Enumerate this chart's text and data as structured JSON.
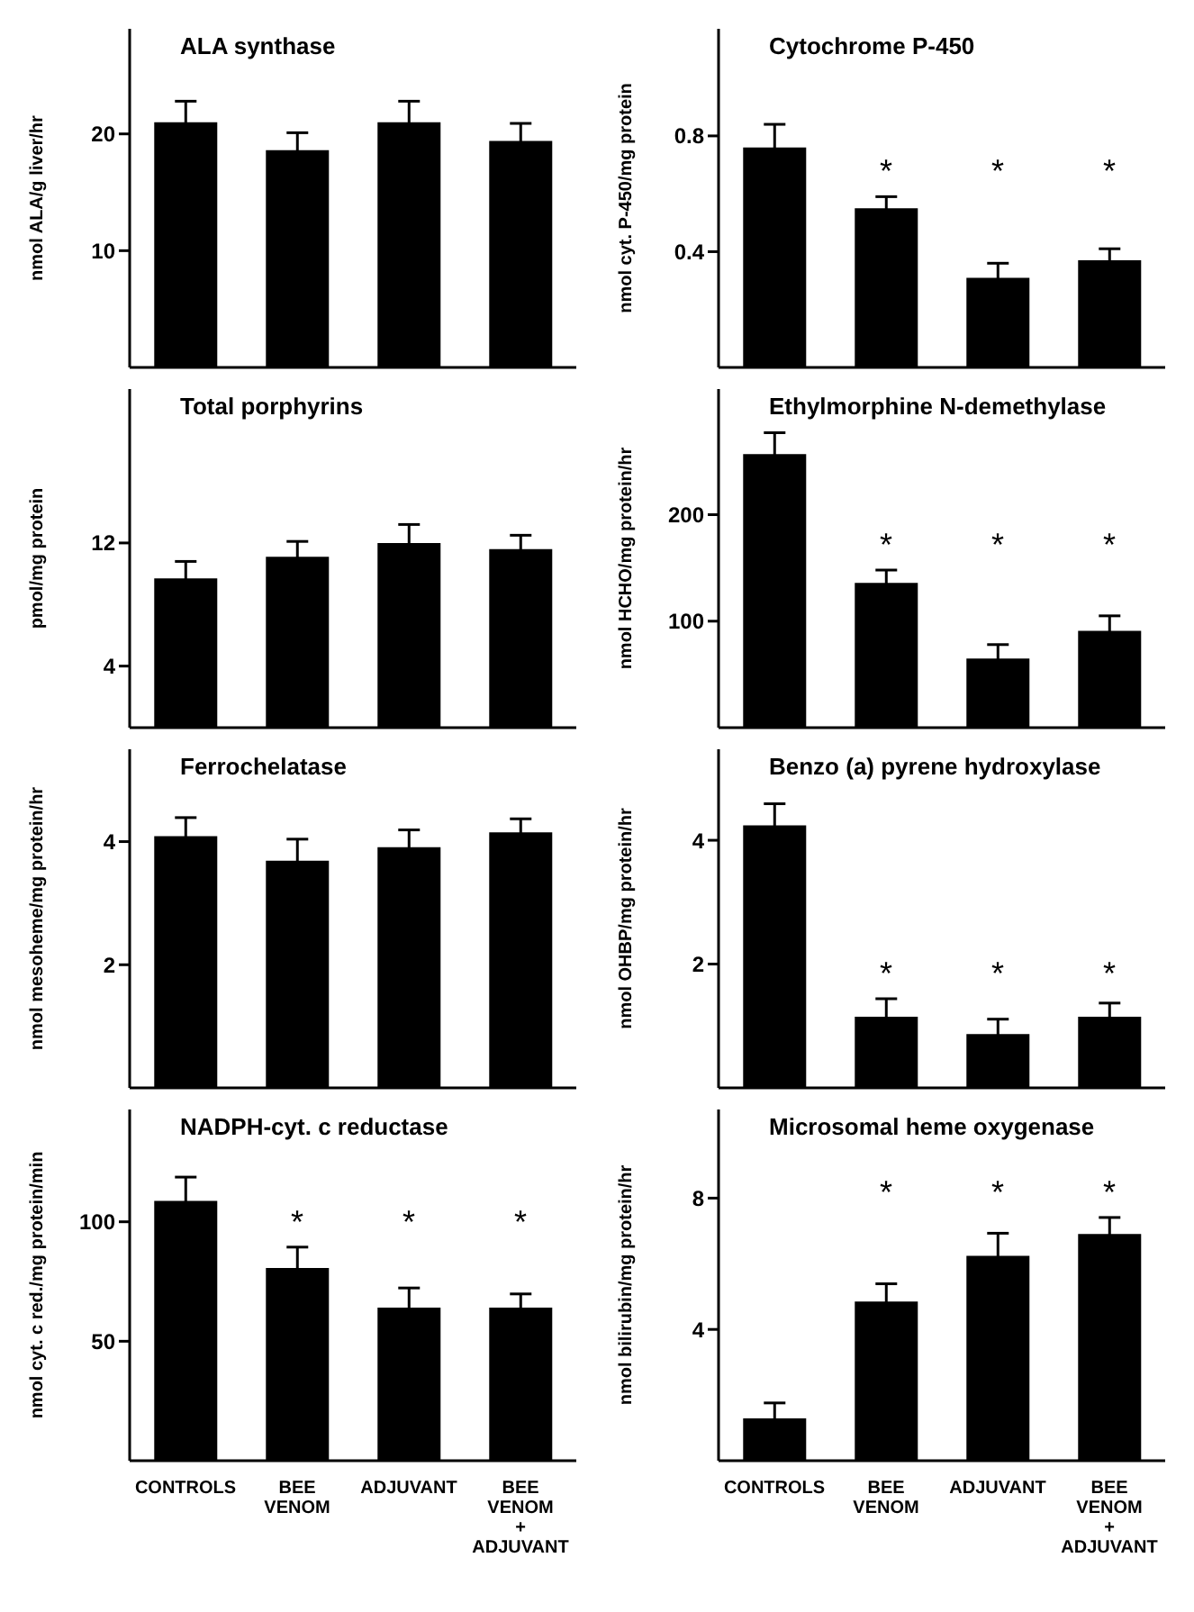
{
  "chart_data": [
    {
      "type": "bar",
      "title": "ALA synthase",
      "ylabel": "nmol ALA/g liver/hr",
      "categories": [
        null,
        null,
        null,
        null
      ],
      "values": [
        21.0,
        18.6,
        21.0,
        19.4
      ],
      "errors": [
        1.8,
        1.5,
        1.8,
        1.5
      ],
      "color": "#000000",
      "ylim": [
        0,
        29
      ],
      "yticks": [
        10,
        20
      ],
      "tick_labels": "y"
    },
    {
      "type": "bar",
      "title": "Cytochrome P-450",
      "ylabel": "nmol cyt. P-450/mg protein",
      "categories": [
        null,
        null,
        null,
        null
      ],
      "values": [
        0.76,
        0.55,
        0.31,
        0.37
      ],
      "errors": [
        0.08,
        0.04,
        0.05,
        0.04
      ],
      "color": "#000000",
      "ylim": [
        0,
        1.17
      ],
      "yticks": [
        0.4,
        0.8
      ],
      "tick_labels": "y",
      "annotations": [
        "*",
        "*",
        "*"
      ]
    },
    {
      "type": "bar",
      "title": "Total porphyrins",
      "ylabel": "pmol/mg protein",
      "categories": [
        null,
        null,
        null,
        null
      ],
      "values": [
        9.7,
        11.1,
        12.0,
        11.6
      ],
      "errors": [
        1.1,
        1.0,
        1.2,
        0.9
      ],
      "color": "#000000",
      "ylim": [
        0,
        22
      ],
      "yticks": [
        4,
        12
      ],
      "tick_labels": "y"
    },
    {
      "type": "bar",
      "title": "Ethylmorphine N-demethylase",
      "ylabel": "nmol HCHO/mg protein/hr",
      "categories": [
        null,
        null,
        null,
        null
      ],
      "values": [
        257,
        136,
        65,
        91
      ],
      "errors": [
        20,
        12,
        13,
        14
      ],
      "color": "#000000",
      "ylim": [
        0,
        318
      ],
      "yticks": [
        100,
        200
      ],
      "tick_labels": "y",
      "annotations": [
        "*",
        "*",
        "*"
      ]
    },
    {
      "type": "bar",
      "title": "Ferrochelatase",
      "ylabel": "nmol mesoheme/mg protein/hr",
      "categories": [
        null,
        null,
        null,
        null
      ],
      "values": [
        4.09,
        3.69,
        3.91,
        4.15
      ],
      "errors": [
        0.3,
        0.35,
        0.28,
        0.22
      ],
      "color": "#000000",
      "ylim": [
        0,
        5.5
      ],
      "yticks": [
        2,
        4
      ],
      "tick_labels": "y"
    },
    {
      "type": "bar",
      "title": "Benzo (a) pyrene hydroxylase",
      "ylabel": "nmol OHBP/mg protein/hr",
      "categories": [
        null,
        null,
        null,
        null
      ],
      "values": [
        4.24,
        1.15,
        0.87,
        1.15
      ],
      "errors": [
        0.35,
        0.29,
        0.24,
        0.22
      ],
      "color": "#000000",
      "ylim": [
        0,
        5.47
      ],
      "yticks": [
        2,
        4
      ],
      "tick_labels": "y",
      "annotations": [
        "*",
        "*",
        "*"
      ]
    },
    {
      "type": "bar",
      "title": "NADPH-cyt. c reductase",
      "ylabel": "nmol cyt. c red./mg protein/min",
      "categories": [
        "CONTROLS",
        "BEE VENOM",
        "ADJUVANT",
        "BEE VENOM + ADJUVANT"
      ],
      "values": [
        108.7,
        80.7,
        64.1,
        64.1
      ],
      "errors": [
        10,
        8.7,
        8.2,
        5.7
      ],
      "color": "#000000",
      "ylim": [
        0,
        147
      ],
      "yticks": [
        50,
        100
      ],
      "annotations": [
        "*",
        "*",
        "*"
      ]
    },
    {
      "type": "bar",
      "title": "Microsomal heme oxygenase",
      "ylabel": "nmol bilirubin/mg protein/hr",
      "categories": [
        "CONTROLS",
        "BEE VENOM",
        "ADJUVANT",
        "BEE VENOM + ADJUVANT"
      ],
      "values": [
        1.29,
        4.85,
        6.24,
        6.91
      ],
      "errors": [
        0.47,
        0.54,
        0.69,
        0.5
      ],
      "color": "#000000",
      "ylim": [
        0,
        10.7
      ],
      "yticks": [
        4,
        8
      ],
      "annotations": [
        "*",
        "*",
        "*"
      ]
    }
  ]
}
